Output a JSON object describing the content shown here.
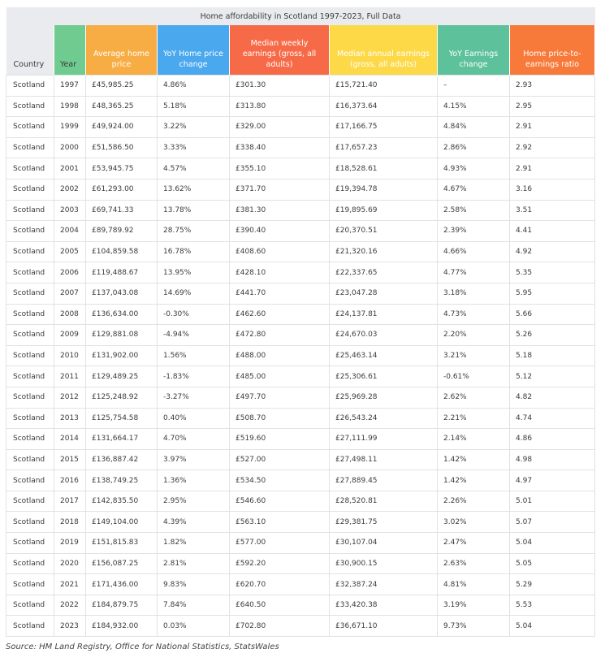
{
  "title": "Home affordability in Scotland 1997-2023, Full Data",
  "headers": {
    "country": "Country",
    "year": "Year",
    "avg_price": "Average home price",
    "yoy_price": "YoY Home price change",
    "weekly": "Median weekly earnings (gross, all adults)",
    "annual": "Median annual earnings (gross, all adults)",
    "yoy_earn": "YoY Earnings change",
    "ratio": "Home price-to-earnings ratio"
  },
  "header_colors": {
    "country": "#e9ebee",
    "year": "#6fcb8f",
    "avg_price": "#f8ad44",
    "yoy_price": "#4aa8ee",
    "weekly": "#f76a48",
    "annual": "#fdd948",
    "yoy_earn": "#5dc19b",
    "ratio": "#f87a3a"
  },
  "rows": [
    [
      "Scotland",
      "1997",
      "£45,985.25",
      "4.86%",
      "£301.30",
      "£15,721.40",
      "–",
      "2.93"
    ],
    [
      "Scotland",
      "1998",
      "£48,365.25",
      "5.18%",
      "£313.80",
      "£16,373.64",
      "4.15%",
      "2.95"
    ],
    [
      "Scotland",
      "1999",
      "£49,924.00",
      "3.22%",
      "£329.00",
      "£17,166.75",
      "4.84%",
      "2.91"
    ],
    [
      "Scotland",
      "2000",
      "£51,586.50",
      "3.33%",
      "£338.40",
      "£17,657.23",
      "2.86%",
      "2.92"
    ],
    [
      "Scotland",
      "2001",
      "£53,945.75",
      "4.57%",
      "£355.10",
      "£18,528.61",
      "4.93%",
      "2.91"
    ],
    [
      "Scotland",
      "2002",
      "£61,293.00",
      "13.62%",
      "£371.70",
      "£19,394.78",
      "4.67%",
      "3.16"
    ],
    [
      "Scotland",
      "2003",
      "£69,741.33",
      "13.78%",
      "£381.30",
      "£19,895.69",
      "2.58%",
      "3.51"
    ],
    [
      "Scotland",
      "2004",
      "£89,789.92",
      "28.75%",
      "£390.40",
      "£20,370.51",
      "2.39%",
      "4.41"
    ],
    [
      "Scotland",
      "2005",
      "£104,859.58",
      "16.78%",
      "£408.60",
      "£21,320.16",
      "4.66%",
      "4.92"
    ],
    [
      "Scotland",
      "2006",
      "£119,488.67",
      "13.95%",
      "£428.10",
      "£22,337.65",
      "4.77%",
      "5.35"
    ],
    [
      "Scotland",
      "2007",
      "£137,043.08",
      "14.69%",
      "£441.70",
      "£23,047.28",
      "3.18%",
      "5.95"
    ],
    [
      "Scotland",
      "2008",
      "£136,634.00",
      "-0.30%",
      "£462.60",
      "£24,137.81",
      "4.73%",
      "5.66"
    ],
    [
      "Scotland",
      "2009",
      "£129,881.08",
      "-4.94%",
      "£472.80",
      "£24,670.03",
      "2.20%",
      "5.26"
    ],
    [
      "Scotland",
      "2010",
      "£131,902.00",
      "1.56%",
      "£488.00",
      "£25,463.14",
      "3.21%",
      "5.18"
    ],
    [
      "Scotland",
      "2011",
      "£129,489.25",
      "-1.83%",
      "£485.00",
      "£25,306.61",
      "-0.61%",
      "5.12"
    ],
    [
      "Scotland",
      "2012",
      "£125,248.92",
      "-3.27%",
      "£497.70",
      "£25,969.28",
      "2.62%",
      "4.82"
    ],
    [
      "Scotland",
      "2013",
      "£125,754.58",
      "0.40%",
      "£508.70",
      "£26,543.24",
      "2.21%",
      "4.74"
    ],
    [
      "Scotland",
      "2014",
      "£131,664.17",
      "4.70%",
      "£519.60",
      "£27,111.99",
      "2.14%",
      "4.86"
    ],
    [
      "Scotland",
      "2015",
      "£136,887.42",
      "3.97%",
      "£527.00",
      "£27,498.11",
      "1.42%",
      "4.98"
    ],
    [
      "Scotland",
      "2016",
      "£138,749.25",
      "1.36%",
      "£534.50",
      "£27,889.45",
      "1.42%",
      "4.97"
    ],
    [
      "Scotland",
      "2017",
      "£142,835.50",
      "2.95%",
      "£546.60",
      "£28,520.81",
      "2.26%",
      "5.01"
    ],
    [
      "Scotland",
      "2018",
      "£149,104.00",
      "4.39%",
      "£563.10",
      "£29,381.75",
      "3.02%",
      "5.07"
    ],
    [
      "Scotland",
      "2019",
      "£151,815.83",
      "1.82%",
      "£577.00",
      "£30,107.04",
      "2.47%",
      "5.04"
    ],
    [
      "Scotland",
      "2020",
      "£156,087.25",
      "2.81%",
      "£592.20",
      "£30,900.15",
      "2.63%",
      "5.05"
    ],
    [
      "Scotland",
      "2021",
      "£171,436.00",
      "9.83%",
      "£620.70",
      "£32,387.24",
      "4.81%",
      "5.29"
    ],
    [
      "Scotland",
      "2022",
      "£184,879.75",
      "7.84%",
      "£640.50",
      "£33,420.38",
      "3.19%",
      "5.53"
    ],
    [
      "Scotland",
      "2023",
      "£184,932.00",
      "0.03%",
      "£702.80",
      "£36,671.10",
      "9.73%",
      "5.04"
    ]
  ],
  "source": "Source: HM Land Registry, Office for National Statistics, StatsWales"
}
